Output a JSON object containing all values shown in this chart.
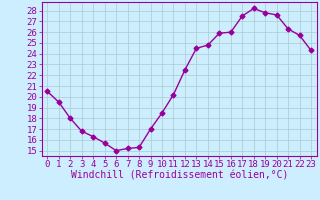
{
  "hours": [
    0,
    1,
    2,
    3,
    4,
    5,
    6,
    7,
    8,
    9,
    10,
    11,
    12,
    13,
    14,
    15,
    16,
    17,
    18,
    19,
    20,
    21,
    22,
    23
  ],
  "values": [
    20.5,
    19.5,
    18.0,
    16.8,
    16.3,
    15.7,
    15.0,
    15.2,
    15.3,
    17.0,
    18.5,
    20.2,
    22.5,
    24.5,
    24.8,
    25.9,
    26.0,
    27.5,
    28.2,
    27.8,
    27.6,
    26.3,
    25.7,
    24.3
  ],
  "line_color": "#990099",
  "marker": "D",
  "marker_size": 2.5,
  "bg_color": "#cceeff",
  "grid_color": "#aacccc",
  "xlabel": "Windchill (Refroidissement éolien,°C)",
  "ylabel_ticks": [
    15,
    16,
    17,
    18,
    19,
    20,
    21,
    22,
    23,
    24,
    25,
    26,
    27,
    28
  ],
  "ylim": [
    14.5,
    28.8
  ],
  "xlim": [
    -0.5,
    23.5
  ],
  "tick_color": "#990099",
  "label_color": "#990099",
  "font_size": 6.5,
  "xlabel_font_size": 7.0,
  "linewidth": 1.0
}
